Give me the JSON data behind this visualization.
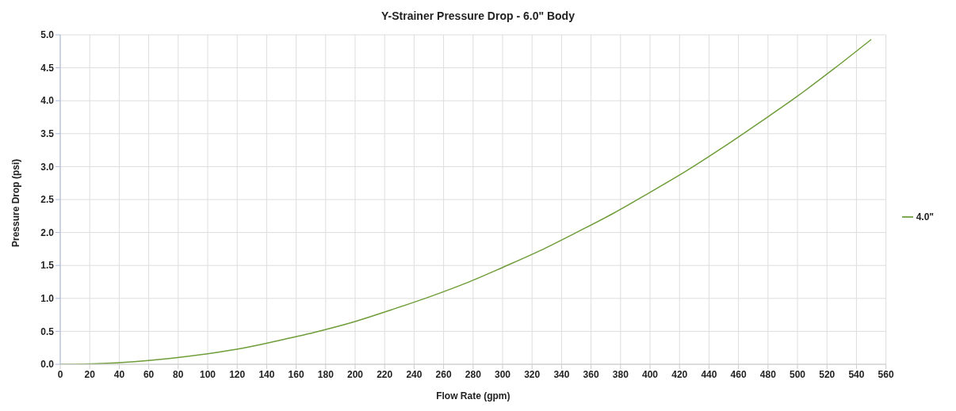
{
  "chart_data": {
    "type": "line",
    "title": "Y-Strainer Pressure Drop - 6.0\" Body",
    "xlabel": "Flow Rate (gpm)",
    "ylabel": "Pressure Drop (psi)",
    "x": [
      0,
      25,
      50,
      75,
      100,
      125,
      150,
      175,
      200,
      225,
      250,
      275,
      300,
      325,
      350,
      375,
      400,
      425,
      450,
      475,
      500,
      525,
      550
    ],
    "series": [
      {
        "name": "4.0\"",
        "color": "#6f9d3a",
        "values": [
          0,
          0.01,
          0.04,
          0.09,
          0.16,
          0.25,
          0.37,
          0.5,
          0.65,
          0.83,
          1.02,
          1.23,
          1.47,
          1.72,
          2.0,
          2.29,
          2.61,
          2.94,
          3.3,
          3.68,
          4.07,
          4.49,
          4.93
        ]
      }
    ],
    "xlim": [
      0,
      560
    ],
    "xticks": [
      0,
      20,
      40,
      60,
      80,
      100,
      120,
      140,
      160,
      180,
      200,
      220,
      240,
      260,
      280,
      300,
      320,
      340,
      360,
      380,
      400,
      420,
      440,
      460,
      480,
      500,
      520,
      540,
      560
    ],
    "ylim": [
      0,
      5
    ],
    "yticks": [
      {
        "value": 0,
        "label": "0.0"
      },
      {
        "value": 0.5,
        "label": "0.5"
      },
      {
        "value": 1,
        "label": "1.0"
      },
      {
        "value": 1.5,
        "label": "1.5"
      },
      {
        "value": 2,
        "label": "2.0"
      },
      {
        "value": 2.5,
        "label": "2.5"
      },
      {
        "value": 3,
        "label": "3.0"
      },
      {
        "value": 3.5,
        "label": "3.5"
      },
      {
        "value": 4,
        "label": "4.0"
      },
      {
        "value": 4.5,
        "label": "4.5"
      },
      {
        "value": 5,
        "label": "5.0"
      }
    ],
    "grid": true,
    "legend": "right",
    "marker": "none",
    "line_style": "solid"
  }
}
